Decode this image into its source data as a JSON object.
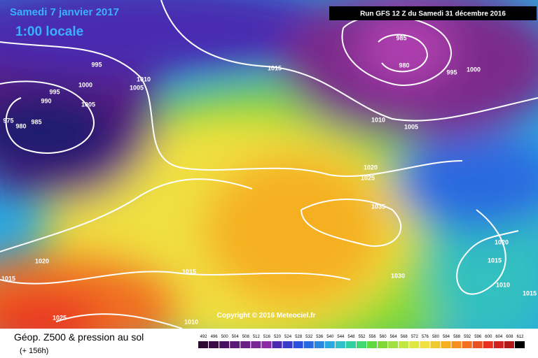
{
  "header": {
    "date": "Samedi 7 janvier 2017",
    "time": "1:00 locale",
    "run": "Run GFS 12 Z du Samedi 31 décembre 2016"
  },
  "isobar_labels": [
    "995",
    "1000",
    "995",
    "990",
    "1005",
    "985",
    "980",
    "975",
    "1010",
    "1005",
    "1015",
    "985",
    "980",
    "995",
    "1000",
    "1010",
    "1005",
    "1020",
    "1025",
    "1035",
    "1030",
    "1020",
    "1015",
    "1010",
    "1015",
    "1020",
    "1015",
    "1015",
    "1025",
    "1010"
  ],
  "copyright": "Copyright © 2016 Meteociel.fr",
  "footer": {
    "title": "Géop. Z500 & pression au sol",
    "lead": "(+ 156h)"
  },
  "scale_labels": [
    "492",
    "496",
    "500",
    "504",
    "508",
    "512",
    "516",
    "520",
    "524",
    "528",
    "532",
    "536",
    "540",
    "544",
    "548",
    "552",
    "556",
    "560",
    "564",
    "568",
    "572",
    "576",
    "580",
    "584",
    "588",
    "592",
    "596",
    "600",
    "604",
    "608",
    "612"
  ]
}
